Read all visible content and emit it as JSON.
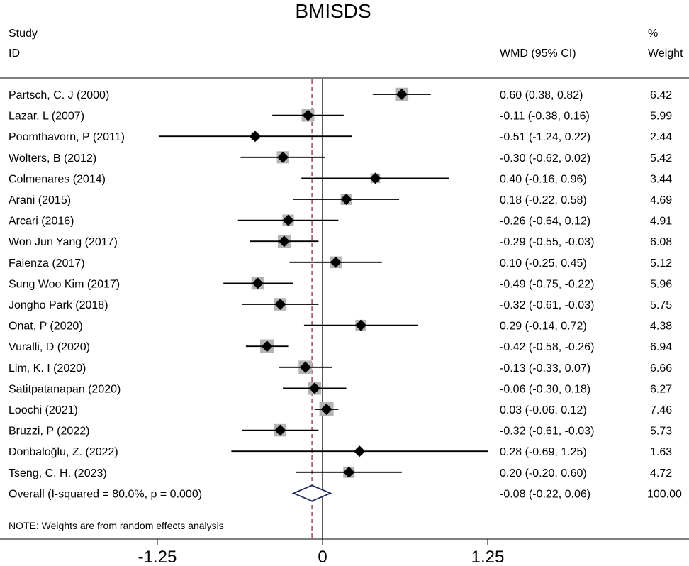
{
  "chart_data": {
    "type": "forest",
    "title": "BMISDS",
    "headers": {
      "study_line1": "Study",
      "study_line2": "ID",
      "effect": "WMD (95% CI)",
      "weight_line1": "%",
      "weight_line2": "Weight"
    },
    "studies": [
      {
        "label": "Partsch, C. J (2000)",
        "est": 0.6,
        "lo": 0.38,
        "hi": 0.82,
        "ci_text": "0.60 (0.38, 0.82)",
        "weight": 6.42,
        "weight_text": "6.42"
      },
      {
        "label": "Lazar, L (2007)",
        "est": -0.11,
        "lo": -0.38,
        "hi": 0.16,
        "ci_text": "-0.11 (-0.38, 0.16)",
        "weight": 5.99,
        "weight_text": "5.99"
      },
      {
        "label": "Poomthavorn, P (2011)",
        "est": -0.51,
        "lo": -1.24,
        "hi": 0.22,
        "ci_text": "-0.51 (-1.24, 0.22)",
        "weight": 2.44,
        "weight_text": "2.44"
      },
      {
        "label": "Wolters, B (2012)",
        "est": -0.3,
        "lo": -0.62,
        "hi": 0.02,
        "ci_text": "-0.30 (-0.62, 0.02)",
        "weight": 5.42,
        "weight_text": "5.42"
      },
      {
        "label": "Colmenares (2014)",
        "est": 0.4,
        "lo": -0.16,
        "hi": 0.96,
        "ci_text": "0.40 (-0.16, 0.96)",
        "weight": 3.44,
        "weight_text": "3.44"
      },
      {
        "label": "Arani (2015)",
        "est": 0.18,
        "lo": -0.22,
        "hi": 0.58,
        "ci_text": "0.18 (-0.22, 0.58)",
        "weight": 4.69,
        "weight_text": "4.69"
      },
      {
        "label": "Arcari (2016)",
        "est": -0.26,
        "lo": -0.64,
        "hi": 0.12,
        "ci_text": "-0.26 (-0.64, 0.12)",
        "weight": 4.91,
        "weight_text": "4.91"
      },
      {
        "label": "Won Jun Yang (2017)",
        "est": -0.29,
        "lo": -0.55,
        "hi": -0.03,
        "ci_text": "-0.29 (-0.55, -0.03)",
        "weight": 6.08,
        "weight_text": "6.08"
      },
      {
        "label": "Faienza (2017)",
        "est": 0.1,
        "lo": -0.25,
        "hi": 0.45,
        "ci_text": "0.10 (-0.25, 0.45)",
        "weight": 5.12,
        "weight_text": "5.12"
      },
      {
        "label": "Sung Woo Kim (2017)",
        "est": -0.49,
        "lo": -0.75,
        "hi": -0.22,
        "ci_text": "-0.49 (-0.75, -0.22)",
        "weight": 5.96,
        "weight_text": "5.96"
      },
      {
        "label": "Jongho Park (2018)",
        "est": -0.32,
        "lo": -0.61,
        "hi": -0.03,
        "ci_text": "-0.32 (-0.61, -0.03)",
        "weight": 5.75,
        "weight_text": "5.75"
      },
      {
        "label": "Onat, P (2020)",
        "est": 0.29,
        "lo": -0.14,
        "hi": 0.72,
        "ci_text": "0.29 (-0.14, 0.72)",
        "weight": 4.38,
        "weight_text": "4.38"
      },
      {
        "label": "Vuralli, D (2020)",
        "est": -0.42,
        "lo": -0.58,
        "hi": -0.26,
        "ci_text": "-0.42 (-0.58, -0.26)",
        "weight": 6.94,
        "weight_text": "6.94"
      },
      {
        "label": "Lim, K. I (2020)",
        "est": -0.13,
        "lo": -0.33,
        "hi": 0.07,
        "ci_text": "-0.13 (-0.33, 0.07)",
        "weight": 6.66,
        "weight_text": "6.66"
      },
      {
        "label": "Satitpatanapan (2020)",
        "est": -0.06,
        "lo": -0.3,
        "hi": 0.18,
        "ci_text": "-0.06 (-0.30, 0.18)",
        "weight": 6.27,
        "weight_text": "6.27"
      },
      {
        "label": "Loochi (2021)",
        "est": 0.03,
        "lo": -0.06,
        "hi": 0.12,
        "ci_text": "0.03 (-0.06, 0.12)",
        "weight": 7.46,
        "weight_text": "7.46"
      },
      {
        "label": "Bruzzi, P (2022)",
        "est": -0.32,
        "lo": -0.61,
        "hi": -0.03,
        "ci_text": "-0.32 (-0.61, -0.03)",
        "weight": 5.73,
        "weight_text": "5.73"
      },
      {
        "label": "Donbaloğlu, Z. (2022)",
        "est": 0.28,
        "lo": -0.69,
        "hi": 1.25,
        "ci_text": "0.28 (-0.69, 1.25)",
        "weight": 1.63,
        "weight_text": "1.63"
      },
      {
        "label": "Tseng, C. H. (2023)",
        "est": 0.2,
        "lo": -0.2,
        "hi": 0.6,
        "ci_text": "0.20 (-0.20, 0.60)",
        "weight": 4.72,
        "weight_text": "4.72"
      }
    ],
    "overall": {
      "label": "Overall  (I-squared = 80.0%, p = 0.000)",
      "est": -0.08,
      "lo": -0.22,
      "hi": 0.06,
      "ci_text": "-0.08 (-0.22, 0.06)",
      "weight_text": "100.00"
    },
    "note": "NOTE: Weights are from random effects analysis",
    "xaxis": {
      "ticks": [
        -1.25,
        0,
        1.25
      ],
      "tick_labels": [
        "-1.25",
        "0",
        "1.25"
      ],
      "range": [
        -2.27,
        2.27
      ],
      "null_line": 0
    },
    "colors": {
      "pooled_line": "#7a2030",
      "overall_diamond": "#1f2a5c",
      "weight_box": "#b4b4b4",
      "marker": "#000000"
    }
  }
}
